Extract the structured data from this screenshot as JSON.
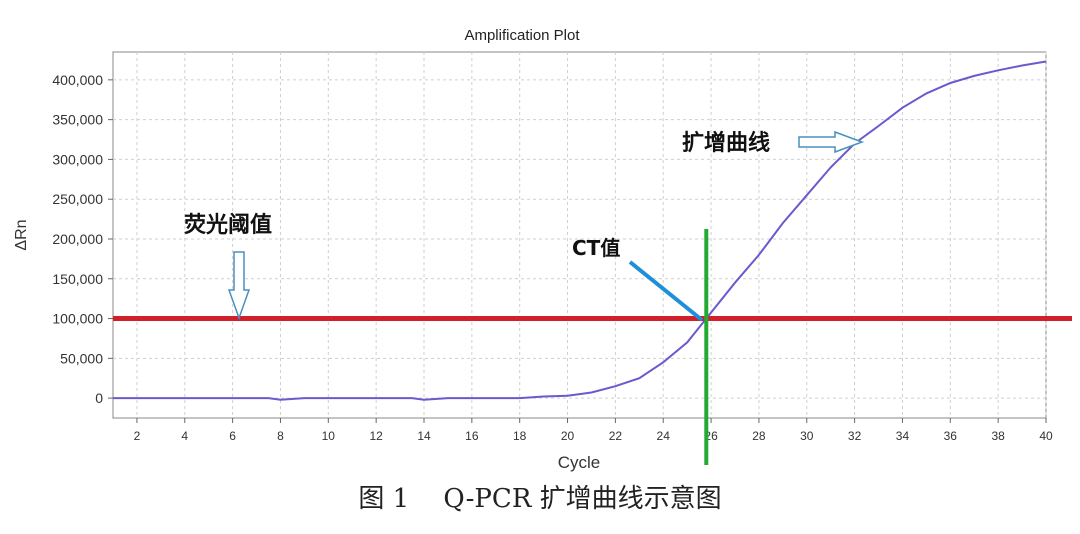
{
  "chart_data": {
    "type": "line",
    "title": "Amplification Plot",
    "xlabel": "Cycle",
    "ylabel": "ΔRn",
    "xlim": [
      1,
      40
    ],
    "ylim": [
      -25000,
      435000
    ],
    "x_ticks": [
      2,
      4,
      6,
      8,
      10,
      12,
      14,
      16,
      18,
      20,
      22,
      24,
      26,
      28,
      30,
      32,
      34,
      36,
      38,
      40
    ],
    "y_ticks": [
      0,
      50000,
      100000,
      150000,
      200000,
      250000,
      300000,
      350000,
      400000
    ],
    "x_tick_labels": [
      "2",
      "4",
      "6",
      "8",
      "10",
      "12",
      "14",
      "16",
      "18",
      "20",
      "22",
      "24",
      "26",
      "28",
      "30",
      "32",
      "34",
      "36",
      "38",
      "40"
    ],
    "y_tick_labels": [
      "0",
      "50,000",
      "100,000",
      "150,000",
      "200,000",
      "250,000",
      "300,000",
      "350,000",
      "400,000"
    ],
    "grid": true,
    "series": [
      {
        "color": "#6a5acd",
        "x": [
          1,
          2,
          3,
          4,
          5,
          6,
          7,
          7.5,
          8,
          9,
          10,
          11,
          12,
          13,
          13.5,
          14,
          15,
          16,
          17,
          18,
          19,
          20,
          21,
          22,
          23,
          24,
          25,
          25.8,
          27,
          28,
          29,
          30,
          31,
          32,
          33,
          34,
          35,
          36,
          37,
          38,
          39,
          40
        ],
        "y": [
          0,
          0,
          0,
          0,
          0,
          0,
          0,
          0,
          -2000,
          0,
          0,
          0,
          0,
          0,
          0,
          -2000,
          0,
          0,
          0,
          0,
          2000,
          3000,
          7000,
          15000,
          25000,
          45000,
          70000,
          100000,
          145000,
          180000,
          220000,
          255000,
          290000,
          320000,
          342000,
          365000,
          383000,
          396000,
          405000,
          412000,
          418000,
          423000
        ]
      }
    ],
    "threshold": {
      "value": 100000,
      "color": "#d0202a"
    },
    "ct_line": {
      "cycle": 25.8,
      "color": "#22aa33"
    },
    "annotations": {
      "threshold_label": "荧光阈值",
      "ct_label": "CT值",
      "curve_label": "扩增曲线"
    }
  },
  "caption": "图 1　 Q-PCR 扩增曲线示意图"
}
